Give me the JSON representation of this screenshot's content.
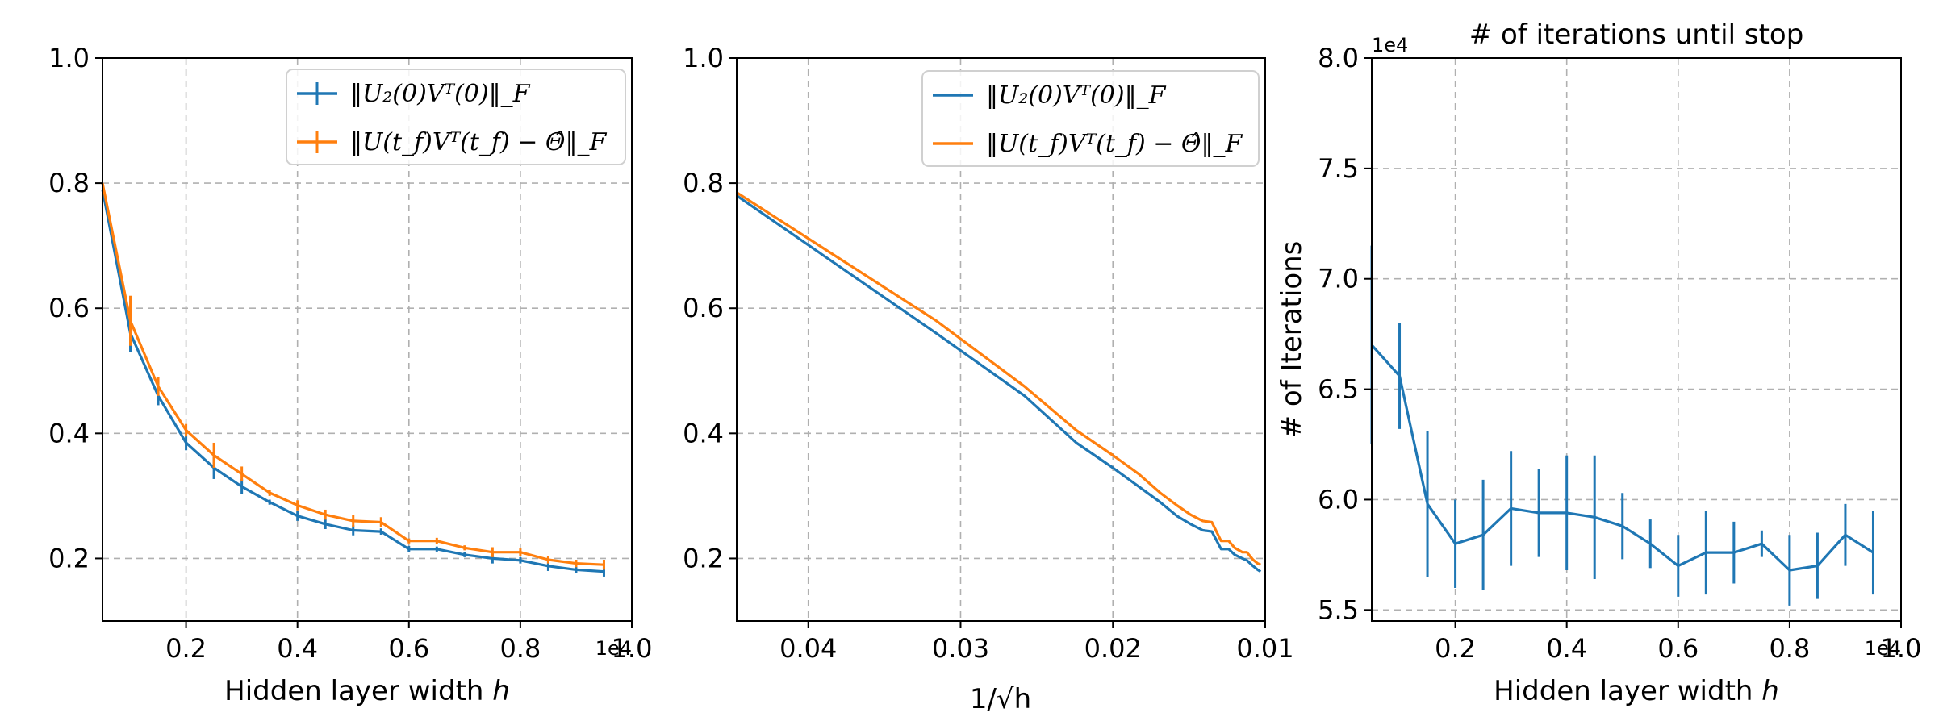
{
  "colors": {
    "blue": "#1f77b4",
    "orange": "#ff7f0e"
  },
  "chart_data": [
    {
      "type": "line",
      "title": "",
      "xlabel": "Hidden layer width h",
      "ylabel": "",
      "x_multiplier": "1e4",
      "xlim": [
        0.05,
        1.0
      ],
      "ylim": [
        0.1,
        1.0
      ],
      "xticks": [
        0.2,
        0.4,
        0.6,
        0.8,
        1.0
      ],
      "xtick_labels": [
        "0.2",
        "0.4",
        "0.6",
        "0.8",
        "1.0"
      ],
      "yticks": [
        0.2,
        0.4,
        0.6,
        0.8,
        1.0
      ],
      "ytick_labels": [
        "0.2",
        "0.4",
        "0.6",
        "0.8",
        "1.0"
      ],
      "grid": true,
      "legend_position": "top-right",
      "x": [
        0.05,
        0.1,
        0.15,
        0.2,
        0.25,
        0.3,
        0.35,
        0.4,
        0.45,
        0.5,
        0.55,
        0.6,
        0.65,
        0.7,
        0.75,
        0.8,
        0.85,
        0.9,
        0.95
      ],
      "series": [
        {
          "name": "‖U₂(0)Vᵀ(0)‖_F",
          "color": "#1f77b4",
          "values": [
            0.79,
            0.56,
            0.46,
            0.385,
            0.345,
            0.315,
            0.29,
            0.268,
            0.255,
            0.245,
            0.243,
            0.215,
            0.215,
            0.206,
            0.2,
            0.197,
            0.188,
            0.182,
            0.179
          ],
          "errors": [
            0.0,
            0.03,
            0.015,
            0.012,
            0.018,
            0.012,
            0.004,
            0.008,
            0.008,
            0.008,
            0.005,
            0.005,
            0.004,
            0.004,
            0.008,
            0.005,
            0.008,
            0.005,
            0.008
          ]
        },
        {
          "name": "‖U(t_f)Vᵀ(t_f) − Θ̂‖_F",
          "color": "#ff7f0e",
          "values": [
            0.8,
            0.58,
            0.475,
            0.405,
            0.365,
            0.335,
            0.305,
            0.285,
            0.27,
            0.26,
            0.258,
            0.228,
            0.228,
            0.217,
            0.21,
            0.21,
            0.198,
            0.192,
            0.19
          ],
          "errors": [
            0.0,
            0.04,
            0.015,
            0.01,
            0.02,
            0.012,
            0.005,
            0.008,
            0.008,
            0.01,
            0.008,
            0.004,
            0.005,
            0.004,
            0.008,
            0.006,
            0.006,
            0.006,
            0.008
          ]
        }
      ]
    },
    {
      "type": "line",
      "title": "",
      "xlabel": "1/√h",
      "ylabel": "",
      "xlim": [
        0.0447,
        0.01
      ],
      "ylim": [
        0.1,
        1.0
      ],
      "xticks": [
        0.04,
        0.03,
        0.02,
        0.01
      ],
      "xtick_labels": [
        "0.04",
        "0.03",
        "0.02",
        "0.01"
      ],
      "yticks": [
        0.2,
        0.4,
        0.6,
        0.8,
        1.0
      ],
      "ytick_labels": [
        "0.2",
        "0.4",
        "0.6",
        "0.8",
        "1.0"
      ],
      "grid": true,
      "legend_position": "top-right",
      "x": [
        0.0447,
        0.0316,
        0.0258,
        0.0224,
        0.02,
        0.0183,
        0.0169,
        0.0158,
        0.0149,
        0.0141,
        0.0135,
        0.0129,
        0.0124,
        0.012,
        0.0115,
        0.0112,
        0.0108,
        0.0105,
        0.0103
      ],
      "series": [
        {
          "name": "‖U₂(0)Vᵀ(0)‖_F",
          "color": "#1f77b4",
          "values": [
            0.78,
            0.56,
            0.46,
            0.385,
            0.345,
            0.315,
            0.29,
            0.268,
            0.255,
            0.245,
            0.243,
            0.215,
            0.215,
            0.206,
            0.2,
            0.197,
            0.188,
            0.182,
            0.179
          ]
        },
        {
          "name": "‖U(t_f)Vᵀ(t_f) − Θ̂‖_F",
          "color": "#ff7f0e",
          "values": [
            0.785,
            0.58,
            0.475,
            0.405,
            0.365,
            0.335,
            0.305,
            0.285,
            0.27,
            0.26,
            0.258,
            0.228,
            0.228,
            0.217,
            0.21,
            0.21,
            0.198,
            0.192,
            0.19
          ]
        }
      ]
    },
    {
      "type": "line",
      "title": "# of iterations until stop",
      "xlabel": "Hidden layer width h",
      "ylabel": "# of Iterations",
      "x_multiplier": "1e4",
      "y_multiplier": "1e4",
      "xlim": [
        0.05,
        1.0
      ],
      "ylim": [
        5.45,
        8.0
      ],
      "xticks": [
        0.2,
        0.4,
        0.6,
        0.8,
        1.0
      ],
      "xtick_labels": [
        "0.2",
        "0.4",
        "0.6",
        "0.8",
        "1.0"
      ],
      "yticks": [
        5.5,
        6.0,
        6.5,
        7.0,
        7.5,
        8.0
      ],
      "ytick_labels": [
        "5.5",
        "6.0",
        "6.5",
        "7.0",
        "7.5",
        "8.0"
      ],
      "grid": true,
      "x": [
        0.05,
        0.1,
        0.15,
        0.2,
        0.25,
        0.3,
        0.35,
        0.4,
        0.45,
        0.5,
        0.55,
        0.6,
        0.65,
        0.7,
        0.75,
        0.8,
        0.85,
        0.9,
        0.95
      ],
      "series": [
        {
          "name": "",
          "color": "#1f77b4",
          "values": [
            6.7,
            6.56,
            5.98,
            5.8,
            5.84,
            5.96,
            5.94,
            5.94,
            5.92,
            5.88,
            5.8,
            5.7,
            5.76,
            5.76,
            5.8,
            5.68,
            5.7,
            5.84,
            5.76
          ],
          "errors": [
            0.45,
            0.24,
            0.33,
            0.2,
            0.25,
            0.26,
            0.2,
            0.26,
            0.28,
            0.15,
            0.11,
            0.14,
            0.19,
            0.14,
            0.06,
            0.16,
            0.15,
            0.14,
            0.19
          ]
        }
      ]
    }
  ]
}
